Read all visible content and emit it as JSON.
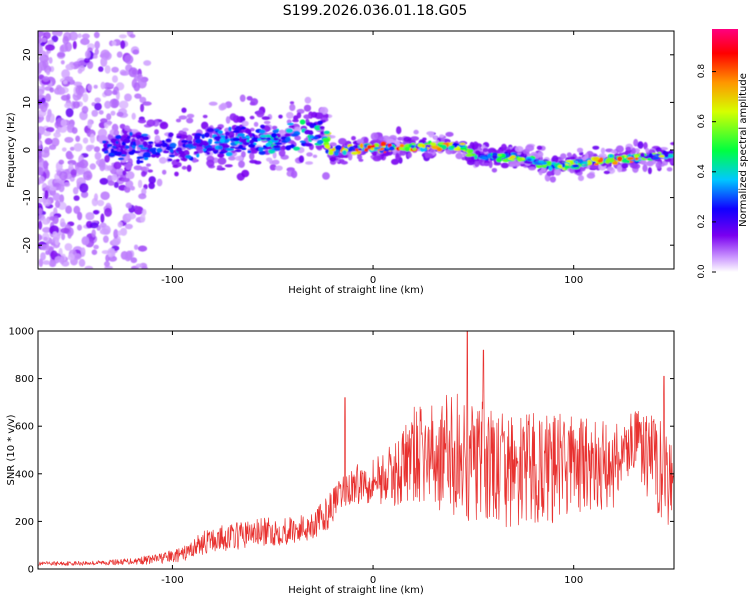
{
  "title": "S199.2026.036.01.18.G05",
  "chart_data": [
    {
      "type": "heatmap",
      "title": "S199.2026.036.01.18.G05",
      "xlabel": "Height of straight line (km)",
      "ylabel": "Frequency (Hz)",
      "xlim": [
        -167,
        150
      ],
      "ylim": [
        -25,
        25
      ],
      "xticks": [
        -100,
        0,
        100
      ],
      "yticks": [
        -20,
        -10,
        0,
        10,
        20
      ],
      "grid": false,
      "colorbar": {
        "label": "Normalized spectral amplitude",
        "range": [
          0.0,
          0.97
        ],
        "ticks": [
          0.0,
          0.2,
          0.4,
          0.6,
          0.8
        ],
        "tick_labels": [
          "0.0",
          "0.2",
          "0.4",
          "0.6",
          "0.8"
        ],
        "colormap": "rainbow (white-purple-blue-cyan-green-yellow-orange-red-magenta)"
      },
      "ridge": {
        "x": [
          -130,
          -110,
          -90,
          -70,
          -50,
          -35,
          -25,
          -22,
          -10,
          0,
          10,
          20,
          30,
          45,
          50,
          60,
          70,
          80,
          85,
          90,
          100,
          110,
          120,
          130,
          140,
          150
        ],
        "freq": [
          1,
          0,
          1,
          2,
          2,
          3,
          4,
          0,
          0,
          0.5,
          0.5,
          0.5,
          1,
          0.5,
          -1,
          -1.5,
          -1.5,
          -2,
          -3,
          -3.5,
          -3,
          -2.5,
          -2,
          -1.5,
          -1.5,
          -1
        ],
        "level": [
          0.25,
          0.3,
          0.3,
          0.35,
          0.4,
          0.45,
          0.45,
          0.75,
          0.85,
          0.9,
          0.9,
          0.85,
          0.8,
          0.7,
          0.65,
          0.65,
          0.65,
          0.6,
          0.55,
          0.55,
          0.75,
          0.8,
          0.85,
          0.8,
          0.7,
          0.6
        ]
      }
    },
    {
      "type": "line",
      "xlabel": "Height of straight line (km)",
      "ylabel": "SNR (10 * v/v)",
      "xlim": [
        -167,
        150
      ],
      "ylim": [
        0,
        1000
      ],
      "xticks": [
        -100,
        0,
        100
      ],
      "yticks": [
        0,
        200,
        400,
        600,
        800,
        1000
      ],
      "grid": false,
      "series": [
        {
          "name": "SNR",
          "color": "#e8312f",
          "x": [
            -167,
            -140,
            -125,
            -110,
            -95,
            -85,
            -75,
            -60,
            -45,
            -35,
            -25,
            -20,
            -15,
            -10,
            0,
            10,
            20,
            30,
            40,
            50,
            60,
            70,
            80,
            90,
            100,
            110,
            120,
            130,
            140,
            150
          ],
          "mean": [
            22,
            25,
            30,
            40,
            60,
            110,
            130,
            150,
            160,
            170,
            210,
            270,
            320,
            350,
            380,
            390,
            480,
            470,
            480,
            440,
            420,
            400,
            420,
            420,
            450,
            420,
            440,
            540,
            450,
            380
          ],
          "range": [
            8,
            10,
            12,
            20,
            30,
            50,
            55,
            60,
            60,
            60,
            70,
            70,
            70,
            80,
            100,
            130,
            200,
            220,
            280,
            280,
            260,
            240,
            240,
            230,
            210,
            200,
            190,
            130,
            200,
            220
          ],
          "peaks": [
            {
              "x": -14,
              "y": 720
            },
            {
              "x": 47,
              "y": 1000
            },
            {
              "x": 55,
              "y": 920
            },
            {
              "x": 145,
              "y": 810
            }
          ]
        }
      ]
    }
  ]
}
